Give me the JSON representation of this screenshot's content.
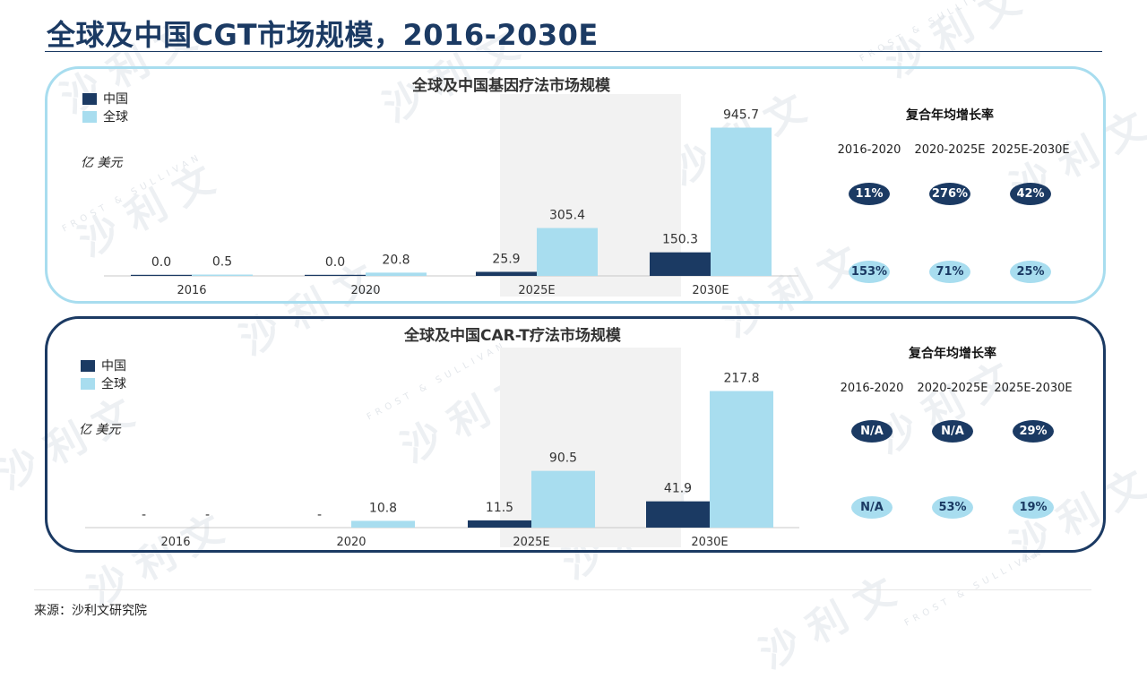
{
  "header": {
    "title": "全球及中国CGT市场规模，2016-2030E"
  },
  "footer": {
    "source": "来源：沙利文研究院"
  },
  "watermark": {
    "text": "沙 利 文",
    "brand": "FROST & SULLIVAN"
  },
  "colors": {
    "china": "#1b3a63",
    "global": "#a8ddef",
    "highlight": "#f2f2f2"
  },
  "chart_data": [
    {
      "type": "bar",
      "title": "全球及中国基因疗法市场规模",
      "unit": "亿 美元",
      "categories": [
        "2016",
        "2020",
        "2025E",
        "2030E"
      ],
      "highlight_categories": [
        "2025E",
        "2030E"
      ],
      "series": [
        {
          "name": "中国",
          "values": [
            0.0,
            0.0,
            25.9,
            150.3
          ],
          "labels": [
            "0.0",
            "0.0",
            "25.9",
            "150.3"
          ]
        },
        {
          "name": "全球",
          "values": [
            0.5,
            20.8,
            305.4,
            945.7
          ],
          "labels": [
            "0.5",
            "20.8",
            "305.4",
            "945.7"
          ]
        }
      ],
      "ylim": [
        0,
        1000
      ],
      "legend": "top-left",
      "grid": false,
      "cagr": {
        "title": "复合年均增长率",
        "periods": [
          "2016-2020",
          "2020-2025E",
          "2025E-2030E"
        ],
        "china": [
          "11%",
          "276%",
          "42%"
        ],
        "global": [
          "153%",
          "71%",
          "25%"
        ]
      }
    },
    {
      "type": "bar",
      "title": "全球及中国CAR-T疗法市场规模",
      "unit": "亿 美元",
      "categories": [
        "2016",
        "2020",
        "2025E",
        "2030E"
      ],
      "highlight_categories": [
        "2025E",
        "2030E"
      ],
      "series": [
        {
          "name": "中国",
          "values": [
            null,
            null,
            11.5,
            41.9
          ],
          "labels": [
            "-",
            "-",
            "11.5",
            "41.9"
          ]
        },
        {
          "name": "全球",
          "values": [
            null,
            10.8,
            90.5,
            217.8
          ],
          "labels": [
            "-",
            "10.8",
            "90.5",
            "217.8"
          ]
        }
      ],
      "ylim": [
        0,
        230
      ],
      "legend": "top-left",
      "grid": false,
      "cagr": {
        "title": "复合年均增长率",
        "periods": [
          "2016-2020",
          "2020-2025E",
          "2025E-2030E"
        ],
        "china": [
          "N/A",
          "N/A",
          "29%"
        ],
        "global": [
          "N/A",
          "53%",
          "19%"
        ]
      }
    }
  ]
}
